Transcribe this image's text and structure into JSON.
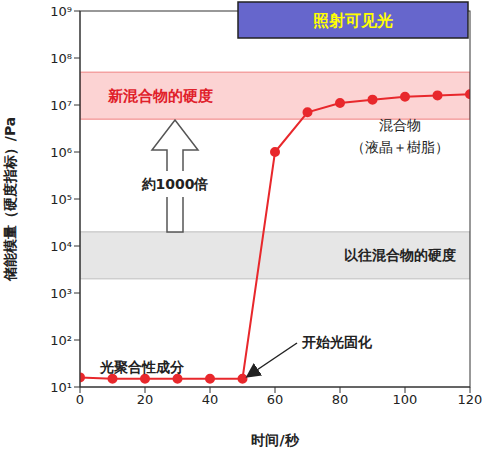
{
  "chart_data": {
    "type": "line",
    "title": "照射可见光",
    "x_label": "时间/秒",
    "y_label": "储能模量（硬度指标）/Pa",
    "log": "y",
    "grid": false,
    "xlim": [
      0,
      120
    ],
    "xticks": [
      0,
      20,
      40,
      60,
      80,
      100,
      120
    ],
    "ylim": [
      10,
      1000000000
    ],
    "yticks": [
      {
        "value": 10,
        "label": "10¹"
      },
      {
        "value": 100,
        "label": "10²"
      },
      {
        "value": 1000,
        "label": "10³"
      },
      {
        "value": 10000,
        "label": "10⁴"
      },
      {
        "value": 100000,
        "label": "10⁵"
      },
      {
        "value": 1000000,
        "label": "10⁶"
      },
      {
        "value": 10000000,
        "label": "10⁷"
      },
      {
        "value": 100000000,
        "label": "10⁸"
      },
      {
        "value": 1000000000,
        "label": "10⁹"
      }
    ],
    "x": [
      0,
      10,
      20,
      30,
      40,
      50,
      60,
      70,
      80,
      90,
      100,
      110,
      120
    ],
    "values": [
      16,
      15,
      15,
      15,
      15,
      15,
      1000000,
      7000000,
      11000000,
      13000000,
      15000000,
      16000000,
      17000000
    ],
    "color": "#e8282c",
    "marker": "circle",
    "line_style": "solid",
    "bands": [
      {
        "label": "新混合物的硬度",
        "y": [
          5000000,
          50000000
        ],
        "color": "#fcd3d3"
      },
      {
        "label": "以往混合物的硬度",
        "y": [
          2000,
          20000
        ],
        "color": "#e6e6e6"
      }
    ],
    "annotations": {
      "mixture": [
        "混合物",
        "（液晶＋樹脂）"
      ],
      "monomer": "光聚合性成分",
      "cure_start": "开始光固化",
      "ratio": "約1000倍"
    }
  }
}
